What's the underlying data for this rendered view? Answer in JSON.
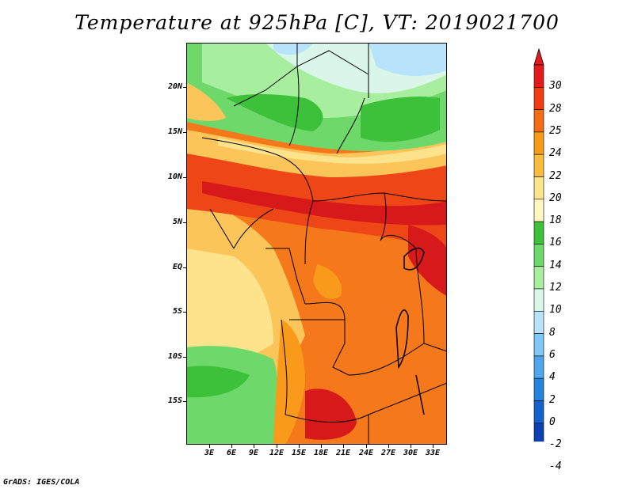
{
  "title": "Temperature at 925hPa [C], VT: 2019021700",
  "credit": "GrADS: IGES/COLA",
  "lat_labels": [
    "20N",
    "15N",
    "10N",
    "5N",
    "EQ",
    "5S",
    "10S",
    "15S"
  ],
  "lon_labels": [
    "3E",
    "6E",
    "9E",
    "12E",
    "15E",
    "18E",
    "21E",
    "24E",
    "27E",
    "30E",
    "33E"
  ],
  "colorbar": {
    "labels": [
      "30",
      "28",
      "25",
      "24",
      "22",
      "20",
      "18",
      "16",
      "14",
      "12",
      "10",
      "8",
      "6",
      "4",
      "2",
      "0",
      "-2",
      "-4"
    ],
    "colors": [
      "#e41a1c",
      "#f03c0f",
      "#f56c12",
      "#f99a1a",
      "#fbbd3d",
      "#fde38c",
      "#fff7c0",
      "#3ec13a",
      "#6fd86a",
      "#a8ee9f",
      "#d9f6e8",
      "#b8e4fb",
      "#82c7f6",
      "#4da6ee",
      "#2584e0",
      "#1362cf",
      "#0c40b3",
      "#0a1f84"
    ],
    "below_color": "#ddd8f0",
    "above_color": "#e41a1c"
  },
  "palette": {
    "dark_red": "#d7191c",
    "red_orange": "#ee4617",
    "orange": "#f5781b",
    "light_orange": "#f9a02c",
    "tan": "#fbc55a",
    "light_yellow": "#fde38c",
    "dark_green": "#3ec13a",
    "green": "#6fd86a",
    "light_green": "#a8ee9f",
    "pale_cyan": "#d9f6e8",
    "light_blue": "#b8e4fb"
  }
}
